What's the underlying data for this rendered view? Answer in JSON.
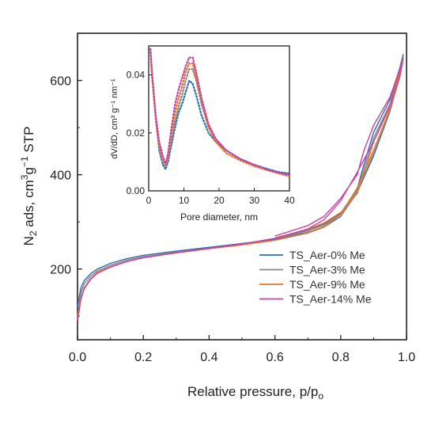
{
  "chart_data": [
    {
      "type": "line",
      "xlabel_main": "Relative pressure, p/p",
      "xlabel_sub": "o",
      "ylabel_parts": {
        "n": "N",
        "n_sub": "2",
        "ads": " ads, cm",
        "sup3": "3",
        "g": "g",
        "supm1": "−1",
        "stp": " STP"
      },
      "xlim": [
        0,
        1.0
      ],
      "ylim": [
        50,
        700
      ],
      "xticks": [
        "0.0",
        "0.2",
        "0.4",
        "0.6",
        "0.8",
        "1.0"
      ],
      "xtick_values": [
        0,
        0.2,
        0.4,
        0.6,
        0.8,
        1.0
      ],
      "yticks": [
        "200",
        "400",
        "600"
      ],
      "ytick_values": [
        200,
        400,
        600
      ],
      "legend_position": "center-right",
      "grid": false,
      "series": [
        {
          "name": "TS_Aer-0% Me",
          "color": "#2b6fb5",
          "adsorption": [
            [
              0.0,
              120
            ],
            [
              0.01,
              160
            ],
            [
              0.02,
              175
            ],
            [
              0.04,
              190
            ],
            [
              0.06,
              200
            ],
            [
              0.1,
              212
            ],
            [
              0.15,
              222
            ],
            [
              0.2,
              229
            ],
            [
              0.3,
              238
            ],
            [
              0.4,
              246
            ],
            [
              0.5,
              254
            ],
            [
              0.6,
              263
            ],
            [
              0.7,
              278
            ],
            [
              0.75,
              290
            ],
            [
              0.8,
              312
            ],
            [
              0.85,
              362
            ],
            [
              0.9,
              440
            ],
            [
              0.95,
              535
            ],
            [
              0.98,
              610
            ],
            [
              0.99,
              655
            ]
          ],
          "desorption": [
            [
              0.99,
              655
            ],
            [
              0.98,
              628
            ],
            [
              0.95,
              560
            ],
            [
              0.9,
              490
            ],
            [
              0.87,
              420
            ],
            [
              0.85,
              370
            ],
            [
              0.8,
              318
            ],
            [
              0.75,
              296
            ],
            [
              0.7,
              283
            ],
            [
              0.6,
              266
            ]
          ]
        },
        {
          "name": "TS_Aer-3% Me",
          "color": "#888888",
          "adsorption": [
            [
              0.0,
              100
            ],
            [
              0.01,
              150
            ],
            [
              0.02,
              168
            ],
            [
              0.04,
              185
            ],
            [
              0.06,
              196
            ],
            [
              0.1,
              208
            ],
            [
              0.15,
              219
            ],
            [
              0.2,
              226
            ],
            [
              0.3,
              236
            ],
            [
              0.4,
              244
            ],
            [
              0.5,
              252
            ],
            [
              0.6,
              261
            ],
            [
              0.7,
              276
            ],
            [
              0.75,
              289
            ],
            [
              0.8,
              311
            ],
            [
              0.85,
              365
            ],
            [
              0.9,
              445
            ],
            [
              0.95,
              538
            ],
            [
              0.98,
              610
            ],
            [
              0.99,
              650
            ]
          ],
          "desorption": [
            [
              0.99,
              650
            ],
            [
              0.98,
              622
            ],
            [
              0.95,
              550
            ],
            [
              0.9,
              478
            ],
            [
              0.87,
              410
            ],
            [
              0.85,
              365
            ],
            [
              0.8,
              316
            ],
            [
              0.75,
              294
            ],
            [
              0.7,
              281
            ],
            [
              0.6,
              264
            ]
          ]
        },
        {
          "name": "TS_Aer-9% Me",
          "color": "#e8772e",
          "adsorption": [
            [
              0.0,
              95
            ],
            [
              0.01,
              140
            ],
            [
              0.02,
              160
            ],
            [
              0.04,
              180
            ],
            [
              0.06,
              193
            ],
            [
              0.1,
              205
            ],
            [
              0.15,
              216
            ],
            [
              0.2,
              224
            ],
            [
              0.3,
              234
            ],
            [
              0.4,
              243
            ],
            [
              0.5,
              251
            ],
            [
              0.6,
              261
            ],
            [
              0.7,
              277
            ],
            [
              0.75,
              291
            ],
            [
              0.8,
              316
            ],
            [
              0.85,
              372
            ],
            [
              0.9,
              452
            ],
            [
              0.95,
              540
            ],
            [
              0.98,
              608
            ],
            [
              0.99,
              648
            ]
          ],
          "desorption": [
            [
              0.99,
              648
            ],
            [
              0.98,
              620
            ],
            [
              0.95,
              545
            ],
            [
              0.9,
              470
            ],
            [
              0.87,
              400
            ],
            [
              0.85,
              360
            ],
            [
              0.8,
              320
            ],
            [
              0.75,
              298
            ],
            [
              0.7,
              284
            ],
            [
              0.6,
              266
            ]
          ]
        },
        {
          "name": "TS_Aer-14% Me",
          "color": "#cc3fa6",
          "adsorption": [
            [
              0.0,
              90
            ],
            [
              0.01,
              135
            ],
            [
              0.02,
              158
            ],
            [
              0.04,
              178
            ],
            [
              0.06,
              191
            ],
            [
              0.1,
              204
            ],
            [
              0.15,
              216
            ],
            [
              0.2,
              224
            ],
            [
              0.3,
              235
            ],
            [
              0.4,
              244
            ],
            [
              0.5,
              253
            ],
            [
              0.6,
              265
            ],
            [
              0.7,
              285
            ],
            [
              0.75,
              305
            ],
            [
              0.8,
              345
            ],
            [
              0.85,
              405
            ],
            [
              0.9,
              470
            ],
            [
              0.95,
              548
            ],
            [
              0.98,
              612
            ],
            [
              0.99,
              645
            ]
          ],
          "desorption": [
            [
              0.99,
              645
            ],
            [
              0.98,
              625
            ],
            [
              0.95,
              565
            ],
            [
              0.9,
              505
            ],
            [
              0.87,
              450
            ],
            [
              0.85,
              400
            ],
            [
              0.8,
              350
            ],
            [
              0.75,
              312
            ],
            [
              0.7,
              292
            ],
            [
              0.6,
              270
            ]
          ]
        }
      ]
    },
    {
      "type": "line",
      "style": "dotted",
      "xlabel": "Pore diameter, nm",
      "ylabel": "dV/dD, cm³ g⁻¹ nm⁻¹",
      "xlim": [
        0,
        40
      ],
      "ylim": [
        0,
        0.05
      ],
      "xticks": [
        "0",
        "10",
        "20",
        "30",
        "40"
      ],
      "xtick_values": [
        0,
        10,
        20,
        30,
        40
      ],
      "yticks": [
        "0.00",
        "0.02",
        "0.04"
      ],
      "ytick_values": [
        0,
        0.02,
        0.04
      ],
      "series": [
        {
          "color": "#2b6fb5",
          "points": [
            [
              0.5,
              0.049
            ],
            [
              1,
              0.04
            ],
            [
              2,
              0.025
            ],
            [
              3,
              0.014
            ],
            [
              4,
              0.009
            ],
            [
              4.8,
              0.0075
            ],
            [
              5.5,
              0.01
            ],
            [
              6.5,
              0.016
            ],
            [
              7.5,
              0.022
            ],
            [
              8.5,
              0.027
            ],
            [
              9.5,
              0.03
            ],
            [
              10.5,
              0.034
            ],
            [
              11.5,
              0.038
            ],
            [
              12.5,
              0.037
            ],
            [
              13.5,
              0.033
            ],
            [
              15,
              0.026
            ],
            [
              17,
              0.02
            ],
            [
              19,
              0.017
            ],
            [
              22,
              0.014
            ],
            [
              26,
              0.011
            ],
            [
              30,
              0.009
            ],
            [
              34,
              0.0075
            ],
            [
              37,
              0.0065
            ],
            [
              40,
              0.006
            ]
          ]
        },
        {
          "color": "#888888",
          "points": [
            [
              0.5,
              0.048
            ],
            [
              1,
              0.039
            ],
            [
              2,
              0.025
            ],
            [
              3,
              0.015
            ],
            [
              4,
              0.01
            ],
            [
              4.8,
              0.0085
            ],
            [
              5.5,
              0.011
            ],
            [
              6.5,
              0.018
            ],
            [
              7.5,
              0.024
            ],
            [
              8.5,
              0.029
            ],
            [
              9.5,
              0.033
            ],
            [
              10.5,
              0.038
            ],
            [
              11.5,
              0.042
            ],
            [
              12.5,
              0.042
            ],
            [
              13.5,
              0.038
            ],
            [
              15,
              0.03
            ],
            [
              17,
              0.022
            ],
            [
              19,
              0.018
            ],
            [
              22,
              0.014
            ],
            [
              26,
              0.011
            ],
            [
              30,
              0.009
            ],
            [
              34,
              0.0072
            ],
            [
              37,
              0.0062
            ],
            [
              40,
              0.0055
            ]
          ]
        },
        {
          "color": "#e8772e",
          "points": [
            [
              0.5,
              0.048
            ],
            [
              1,
              0.039
            ],
            [
              2,
              0.025
            ],
            [
              3,
              0.016
            ],
            [
              4,
              0.011
            ],
            [
              4.8,
              0.009
            ],
            [
              5.5,
              0.012
            ],
            [
              6.5,
              0.02
            ],
            [
              7.5,
              0.027
            ],
            [
              8.5,
              0.032
            ],
            [
              9.5,
              0.036
            ],
            [
              10.5,
              0.041
            ],
            [
              11.5,
              0.044
            ],
            [
              12.5,
              0.044
            ],
            [
              13.5,
              0.039
            ],
            [
              15,
              0.031
            ],
            [
              17,
              0.022
            ],
            [
              19,
              0.017
            ],
            [
              22,
              0.013
            ],
            [
              26,
              0.0105
            ],
            [
              30,
              0.0085
            ],
            [
              34,
              0.007
            ],
            [
              37,
              0.006
            ],
            [
              40,
              0.005
            ]
          ]
        },
        {
          "color": "#cc3fa6",
          "points": [
            [
              0.5,
              0.049
            ],
            [
              1,
              0.04
            ],
            [
              2,
              0.026
            ],
            [
              3,
              0.017
            ],
            [
              4,
              0.012
            ],
            [
              4.8,
              0.0095
            ],
            [
              5.5,
              0.013
            ],
            [
              6.5,
              0.022
            ],
            [
              7.5,
              0.03
            ],
            [
              8.5,
              0.035
            ],
            [
              9.5,
              0.039
            ],
            [
              10.5,
              0.043
            ],
            [
              11.5,
              0.046
            ],
            [
              12.5,
              0.046
            ],
            [
              13.5,
              0.041
            ],
            [
              15,
              0.032
            ],
            [
              17,
              0.023
            ],
            [
              19,
              0.018
            ],
            [
              22,
              0.014
            ],
            [
              26,
              0.011
            ],
            [
              30,
              0.009
            ],
            [
              34,
              0.0072
            ],
            [
              37,
              0.0062
            ],
            [
              40,
              0.0055
            ]
          ]
        }
      ]
    }
  ]
}
